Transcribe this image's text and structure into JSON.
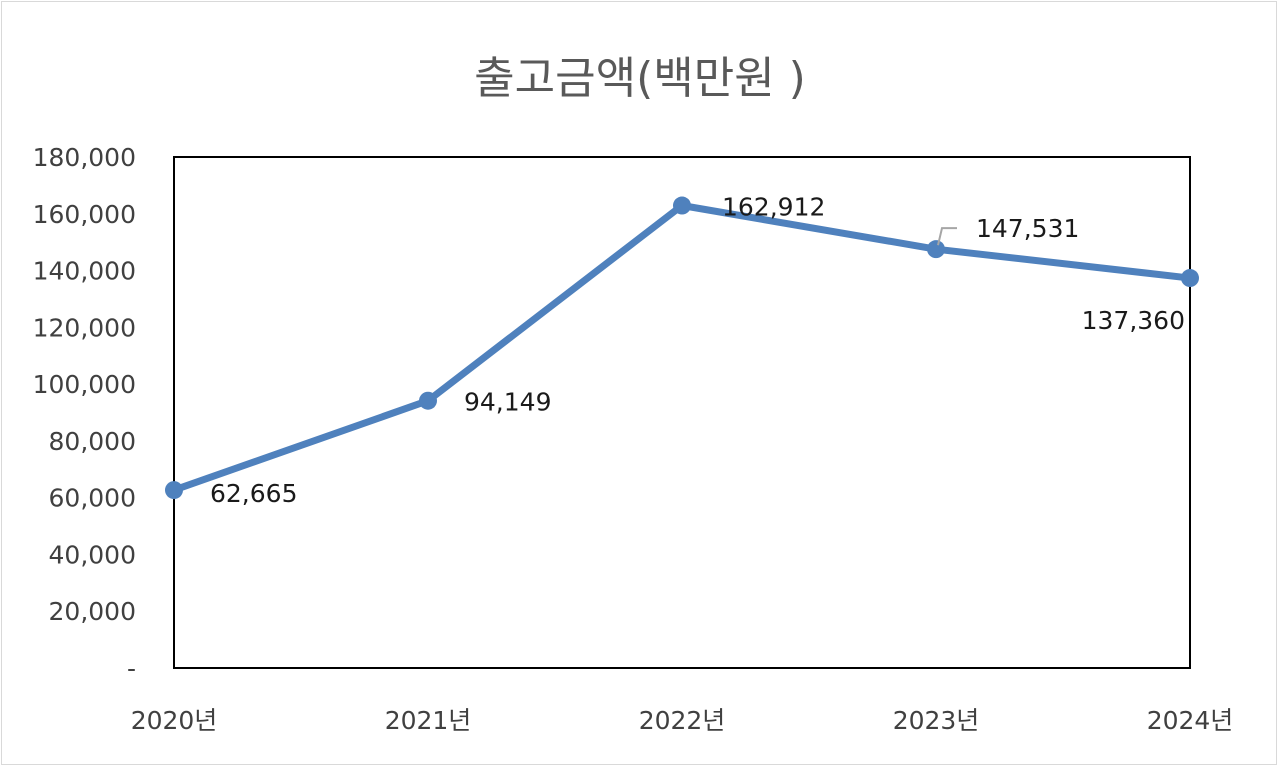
{
  "chart_data": {
    "type": "line",
    "title": "출고금액(백만원 )",
    "categories": [
      "2020년",
      "2021년",
      "2022년",
      "2023년",
      "2024년"
    ],
    "series": [
      {
        "values": [
          62665,
          94149,
          162912,
          147531,
          137360
        ],
        "labels": [
          "62,665",
          "94,149",
          "162,912",
          "147,531",
          "137,360"
        ]
      }
    ],
    "ylim": [
      0,
      180000
    ],
    "yticks": [
      0,
      20000,
      40000,
      60000,
      80000,
      100000,
      120000,
      140000,
      160000,
      180000
    ],
    "ytick_labels": [
      "-",
      "20,000",
      "40,000",
      "60,000",
      "80,000",
      "100,000",
      "120,000",
      "140,000",
      "160,000",
      "180,000"
    ],
    "xlabel": "",
    "ylabel": "",
    "grid": false,
    "line_color": "#4f81bd"
  }
}
